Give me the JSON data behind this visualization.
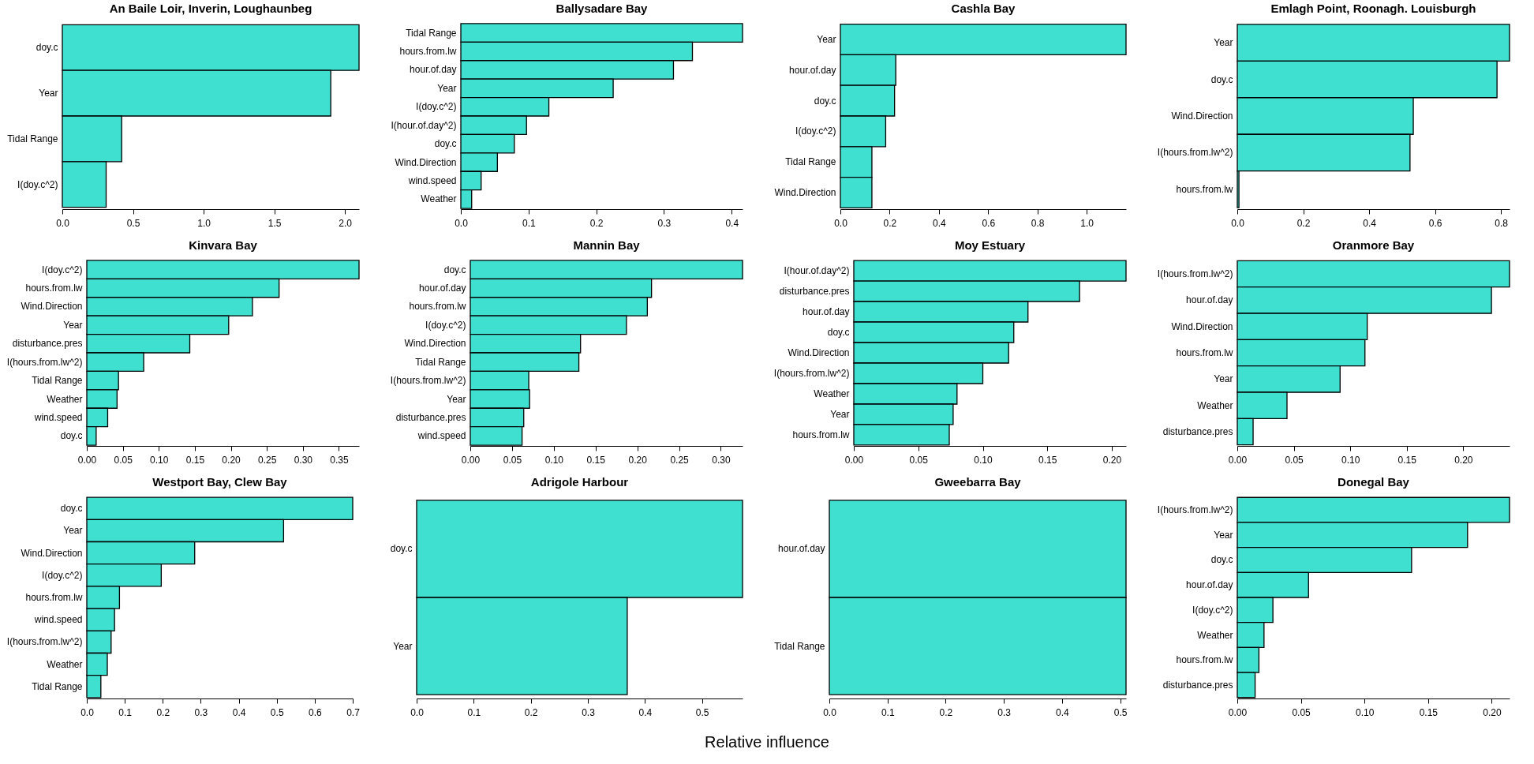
{
  "chart_data": [
    {
      "type": "bar",
      "orientation": "horizontal",
      "title": "An Baile Lοir, Inverin, Loughaunbeg",
      "categories": [
        "doy.c",
        "Year",
        "Tidal Range",
        "I(doy.c^2)"
      ],
      "values": [
        2.1,
        1.9,
        0.42,
        0.31
      ],
      "color": "#40e0d0",
      "xlim": [
        0,
        2.1
      ],
      "xticks": [
        {
          "value": 0,
          "label": "0.0"
        },
        0.5,
        {
          "value": 1,
          "label": "1.0"
        },
        1.5,
        {
          "value": 2,
          "label": "2.0"
        }
      ]
    },
    {
      "type": "bar",
      "orientation": "horizontal",
      "title": "Ballysadare Bay",
      "categories": [
        "Tidal Range",
        "hours.from.lw",
        "hour.of.day",
        "Year",
        "I(doy.c^2)",
        "I(hour.of.day^2)",
        "doy.c",
        "Wind.Direction",
        "wind.speed",
        "Weather"
      ],
      "values": [
        0.416,
        0.342,
        0.314,
        0.225,
        0.13,
        0.097,
        0.079,
        0.054,
        0.03,
        0.016
      ],
      "color": "#40e0d0",
      "xlim": [
        0,
        0.416
      ],
      "xticks": [
        {
          "value": 0,
          "label": "0.0"
        },
        0.1,
        0.2,
        0.3,
        0.4
      ]
    },
    {
      "type": "bar",
      "orientation": "horizontal",
      "title": "Cashla Bay",
      "categories": [
        "Year",
        "hour.of.day",
        "doy.c",
        "I(doy.c^2)",
        "Tidal Range",
        "Wind.Direction"
      ],
      "values": [
        1.16,
        0.225,
        0.22,
        0.184,
        0.128,
        0.128
      ],
      "color": "#40e0d0",
      "xlim": [
        0,
        1.16
      ],
      "xticks": [
        {
          "value": 0,
          "label": "0.0"
        },
        0.2,
        0.4,
        0.6,
        0.8,
        {
          "value": 1,
          "label": "1.0"
        }
      ]
    },
    {
      "type": "bar",
      "orientation": "horizontal",
      "title": "Emlagh Point, Roonagh. Louisburgh",
      "categories": [
        "Year",
        "doy.c",
        "Wind.Direction",
        "I(hours.from.lw^2)",
        "hours.from.lw"
      ],
      "values": [
        0.826,
        0.788,
        0.534,
        0.524,
        0.005
      ],
      "color": "#40e0d0",
      "xlim": [
        0,
        0.826
      ],
      "xticks": [
        {
          "value": 0,
          "label": "0.0"
        },
        0.2,
        0.4,
        0.6,
        0.8
      ]
    },
    {
      "type": "bar",
      "orientation": "horizontal",
      "title": "Kinvara Bay",
      "categories": [
        "I(doy.c^2)",
        "hours.from.lw",
        "Wind.Direction",
        "Year",
        "disturbance.pres",
        "I(hours.from.lw^2)",
        "Tidal Range",
        "Weather",
        "wind.speed",
        "doy.c"
      ],
      "values": [
        0.378,
        0.267,
        0.23,
        0.197,
        0.143,
        0.079,
        0.044,
        0.042,
        0.029,
        0.013
      ],
      "color": "#40e0d0",
      "xlim": [
        0,
        0.378
      ],
      "xticks": [
        {
          "value": 0,
          "label": "0.00"
        },
        0.05,
        {
          "value": 0.1,
          "label": "0.10"
        },
        0.15,
        {
          "value": 0.2,
          "label": "0.20"
        },
        0.25,
        {
          "value": 0.3,
          "label": "0.30"
        },
        0.35
      ]
    },
    {
      "type": "bar",
      "orientation": "horizontal",
      "title": "Mannin Bay",
      "categories": [
        "doy.c",
        "hour.of.day",
        "hours.from.lw",
        "I(doy.c^2)",
        "Wind.Direction",
        "Tidal Range",
        "I(hours.from.lw^2)",
        "Year",
        "disturbance.pres",
        "wind.speed"
      ],
      "values": [
        0.326,
        0.217,
        0.212,
        0.187,
        0.132,
        0.13,
        0.07,
        0.071,
        0.064,
        0.062
      ],
      "color": "#40e0d0",
      "xlim": [
        0,
        0.326
      ],
      "xticks": [
        {
          "value": 0,
          "label": "0.00"
        },
        0.05,
        {
          "value": 0.1,
          "label": "0.10"
        },
        0.15,
        {
          "value": 0.2,
          "label": "0.20"
        },
        0.25,
        {
          "value": 0.3,
          "label": "0.30"
        }
      ]
    },
    {
      "type": "bar",
      "orientation": "horizontal",
      "title": "Moy Estuary",
      "categories": [
        "I(hour.of.day^2)",
        "disturbance.pres",
        "hour.of.day",
        "doy.c",
        "Wind.Direction",
        "I(hours.from.lw^2)",
        "Weather",
        "Year",
        "hours.from.lw"
      ],
      "values": [
        0.211,
        0.175,
        0.135,
        0.124,
        0.12,
        0.1,
        0.08,
        0.077,
        0.074
      ],
      "color": "#40e0d0",
      "xlim": [
        0,
        0.211
      ],
      "xticks": [
        {
          "value": 0,
          "label": "0.00"
        },
        0.05,
        {
          "value": 0.1,
          "label": "0.10"
        },
        0.15,
        {
          "value": 0.2,
          "label": "0.20"
        }
      ]
    },
    {
      "type": "bar",
      "orientation": "horizontal",
      "title": "Oranmore Bay",
      "categories": [
        "I(hours.from.lw^2)",
        "hour.of.day",
        "Wind.Direction",
        "hours.from.lw",
        "Year",
        "Weather",
        "disturbance.pres"
      ],
      "values": [
        0.241,
        0.225,
        0.115,
        0.113,
        0.091,
        0.044,
        0.014
      ],
      "color": "#40e0d0",
      "xlim": [
        0,
        0.241
      ],
      "xticks": [
        {
          "value": 0,
          "label": "0.00"
        },
        0.05,
        {
          "value": 0.1,
          "label": "0.10"
        },
        0.15,
        {
          "value": 0.2,
          "label": "0.20"
        }
      ]
    },
    {
      "type": "bar",
      "orientation": "horizontal",
      "title": "Westport Bay, Clew Bay",
      "categories": [
        "doy.c",
        "Year",
        "Wind.Direction",
        "I(doy.c^2)",
        "hours.from.lw",
        "wind.speed",
        "I(hours.from.lw^2)",
        "Weather",
        "Tidal Range"
      ],
      "values": [
        0.7,
        0.518,
        0.284,
        0.196,
        0.086,
        0.073,
        0.064,
        0.054,
        0.037
      ],
      "color": "#40e0d0",
      "xlim": [
        0,
        0.7
      ],
      "xticks": [
        {
          "value": 0,
          "label": "0.0"
        },
        0.1,
        0.2,
        0.3,
        0.4,
        0.5,
        0.6,
        0.7
      ]
    },
    {
      "type": "bar",
      "orientation": "horizontal",
      "title": "Adrigole Harbour",
      "categories": [
        "doy.c",
        "Year"
      ],
      "values": [
        0.571,
        0.369
      ],
      "color": "#40e0d0",
      "xlim": [
        0,
        0.571
      ],
      "xticks": [
        {
          "value": 0,
          "label": "0.0"
        },
        0.1,
        0.2,
        0.3,
        0.4,
        0.5
      ],
      "xlabel": "Relative influence"
    },
    {
      "type": "bar",
      "orientation": "horizontal",
      "title": "Gweebarra Bay",
      "categories": [
        "hour.of.day",
        "Tidal Range"
      ],
      "values": [
        0.51,
        0.51
      ],
      "color": "#40e0d0",
      "xlim": [
        0,
        0.51
      ],
      "xticks": [
        {
          "value": 0,
          "label": "0.0"
        },
        0.1,
        0.2,
        0.3,
        0.4,
        0.5
      ]
    },
    {
      "type": "bar",
      "orientation": "horizontal",
      "title": "Donegal Bay",
      "categories": [
        "I(hours.from.lw^2)",
        "Year",
        "doy.c",
        "hour.of.day",
        "I(doy.c^2)",
        "Weather",
        "hours.from.lw",
        "disturbance.pres"
      ],
      "values": [
        0.214,
        0.181,
        0.137,
        0.056,
        0.028,
        0.021,
        0.017,
        0.014
      ],
      "color": "#40e0d0",
      "xlim": [
        0,
        0.214
      ],
      "xticks": [
        {
          "value": 0,
          "label": "0.00"
        },
        0.05,
        {
          "value": 0.1,
          "label": "0.10"
        },
        0.15,
        {
          "value": 0.2,
          "label": "0.20"
        }
      ]
    }
  ]
}
